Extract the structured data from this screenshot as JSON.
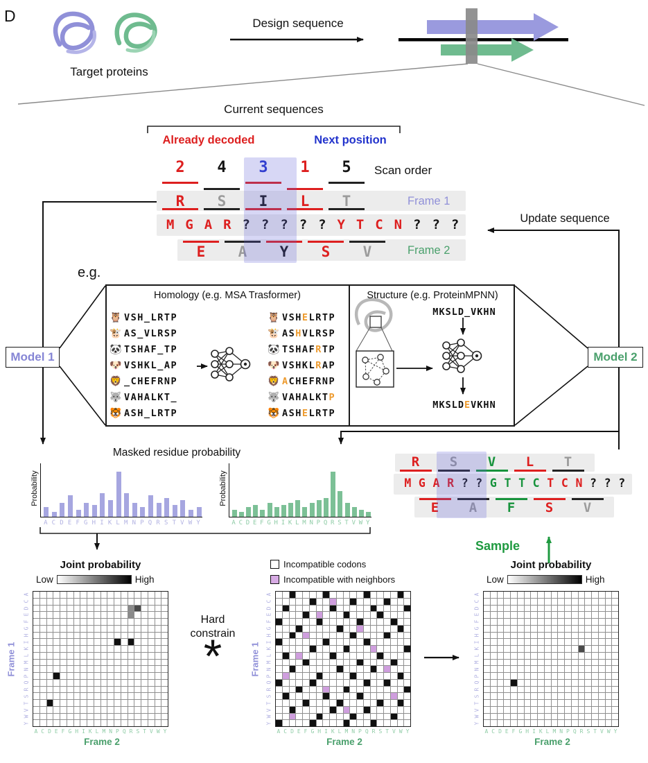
{
  "panel_label": "D",
  "colors": {
    "red": "#dd1f1f",
    "blue": "#2233cc",
    "frame1_purple": "#9090d8",
    "frame2_green": "#4aa06c",
    "sample_green": "#1f9a40",
    "orange": "#ed9a2d",
    "gray_letter": "#9b9b9b",
    "heat_purple": "#cf9ede"
  },
  "top": {
    "target_proteins": "Target proteins",
    "design_sequence": "Design sequence"
  },
  "current_panel": {
    "title": "Current sequences",
    "already_decoded": "Already decoded",
    "next_position": "Next position",
    "scan_order_label": "Scan order",
    "scan_numbers": "24315",
    "scan_colors": "rkbrk",
    "scan_line_colors": "rkrrk",
    "frame1_label": "Frame 1",
    "frame2_label": "Frame 2",
    "frame1_seq": "RSILT",
    "frame1_colors": "rakra",
    "frame1_line_colors": "rkrrk",
    "nt_seq": "MGAR?????YTCN???",
    "nt_colors": "rrrrkkkkkrrrrkkk",
    "frame2_seq": "EAYSV",
    "frame2_colors": "rakra",
    "frame2_line_colors": "rkrrk",
    "update_label": "Update sequence"
  },
  "models_box": {
    "eg": "e.g.",
    "model1": "Model 1",
    "model2": "Model 2",
    "homology_title": "Homology (e.g. MSA Trasformer)",
    "structure_title": "Structure (e.g. ProteinMPNN)",
    "msa_rows": [
      {
        "animal": "owl",
        "icon": "🦉",
        "input": "VSH_LRTP",
        "output": "VSHELRTP",
        "highlight": 3
      },
      {
        "animal": "cow",
        "icon": "🐮",
        "input": "AS_VLRSP",
        "output": "ASHVLRSP",
        "highlight": 2
      },
      {
        "animal": "panda",
        "icon": "🐼",
        "input": "TSHAF_TP",
        "output": "TSHAFRTP",
        "highlight": 5
      },
      {
        "animal": "dog",
        "icon": "🐶",
        "input": "VSHKL_AP",
        "output": "VSHKLRAP",
        "highlight": 5
      },
      {
        "animal": "lion",
        "icon": "🦁",
        "input": "_CHEFRNP",
        "output": "ACHEFRNP",
        "highlight": 0
      },
      {
        "animal": "wolf",
        "icon": "🐺",
        "input": "VAHALKT_",
        "output": "VAHALKTP",
        "highlight": 7
      },
      {
        "animal": "tiger",
        "icon": "🐯",
        "input": "ASH_LRTP",
        "output": "ASHELRTP",
        "highlight": 3
      }
    ],
    "structure_input": "MKSLD_VKHN",
    "structure_output": "MKSLDEVKHN",
    "structure_highlight": 5
  },
  "probability": {
    "title": "Masked residue probability",
    "ylabel": "Probability"
  },
  "updated_panel": {
    "frame1_seq": "RSVLT",
    "frame1_colors": "ragra",
    "frame1_line_colors": "rkgrk",
    "nt_seq": "MGAR??GTTCTCN???",
    "nt_colors": "rrrrkkggggrrrkkk",
    "frame2_seq": "EAFSV",
    "frame2_colors": "ragra",
    "frame2_line_colors": "rkgrk",
    "sample_label": "Sample"
  },
  "heatmaps": {
    "joint_title": "Joint probability",
    "low": "Low",
    "high": "High",
    "legend_black": "Incompatible codons",
    "legend_purple": "Incompatible with neighbors",
    "hard_constrain": "Hard constrain",
    "asterisk": "*",
    "frame1_label": "Frame 1",
    "frame2_label": "Frame 2",
    "letters": "ACDEFGHIKLMNPQRSTVWY",
    "left_cells": [
      [
        2,
        14,
        "g2"
      ],
      [
        2,
        15,
        "g1"
      ],
      [
        3,
        14,
        "g2"
      ],
      [
        7,
        12,
        "k"
      ],
      [
        7,
        14,
        "k"
      ],
      [
        12,
        3,
        "k"
      ],
      [
        16,
        2,
        "k"
      ]
    ],
    "right_cells": [
      [
        8,
        14,
        "g1"
      ],
      [
        13,
        4,
        "k"
      ]
    ],
    "mid_black": [
      [
        0,
        2
      ],
      [
        0,
        7
      ],
      [
        0,
        13
      ],
      [
        0,
        18
      ],
      [
        1,
        5
      ],
      [
        1,
        11
      ],
      [
        1,
        16
      ],
      [
        2,
        1
      ],
      [
        2,
        8
      ],
      [
        2,
        14
      ],
      [
        2,
        19
      ],
      [
        3,
        4
      ],
      [
        3,
        10
      ],
      [
        3,
        15
      ],
      [
        4,
        0
      ],
      [
        4,
        6
      ],
      [
        4,
        12
      ],
      [
        4,
        17
      ],
      [
        5,
        3
      ],
      [
        5,
        9
      ],
      [
        5,
        18
      ],
      [
        6,
        2
      ],
      [
        6,
        11
      ],
      [
        6,
        16
      ],
      [
        7,
        0
      ],
      [
        7,
        7
      ],
      [
        7,
        13
      ],
      [
        8,
        5
      ],
      [
        8,
        10
      ],
      [
        8,
        19
      ],
      [
        9,
        1
      ],
      [
        9,
        8
      ],
      [
        9,
        15
      ],
      [
        10,
        4
      ],
      [
        10,
        12
      ],
      [
        10,
        17
      ],
      [
        11,
        2
      ],
      [
        11,
        9
      ],
      [
        11,
        14
      ],
      [
        12,
        6
      ],
      [
        12,
        11
      ],
      [
        12,
        18
      ],
      [
        13,
        0
      ],
      [
        13,
        5
      ],
      [
        13,
        13
      ],
      [
        13,
        16
      ],
      [
        14,
        3
      ],
      [
        14,
        10
      ],
      [
        14,
        19
      ],
      [
        15,
        1
      ],
      [
        15,
        7
      ],
      [
        15,
        12
      ],
      [
        16,
        4
      ],
      [
        16,
        9
      ],
      [
        16,
        15
      ],
      [
        16,
        18
      ],
      [
        17,
        2
      ],
      [
        17,
        8
      ],
      [
        17,
        13
      ],
      [
        18,
        6
      ],
      [
        18,
        11
      ],
      [
        18,
        17
      ],
      [
        19,
        0
      ],
      [
        19,
        5
      ],
      [
        19,
        10
      ],
      [
        19,
        14
      ]
    ],
    "mid_purple": [
      [
        1,
        8
      ],
      [
        3,
        6
      ],
      [
        5,
        12
      ],
      [
        6,
        4
      ],
      [
        8,
        14
      ],
      [
        9,
        3
      ],
      [
        11,
        16
      ],
      [
        12,
        1
      ],
      [
        14,
        7
      ],
      [
        15,
        17
      ],
      [
        17,
        10
      ],
      [
        18,
        2
      ]
    ]
  },
  "chart_data": [
    {
      "type": "bar",
      "name": "model1_masked_residue_probability",
      "title": "Masked residue probability",
      "ylabel": "Probability",
      "categories": [
        "A",
        "C",
        "D",
        "E",
        "F",
        "G",
        "H",
        "I",
        "K",
        "L",
        "M",
        "N",
        "P",
        "Q",
        "R",
        "S",
        "T",
        "V",
        "W",
        "Y"
      ],
      "values": [
        0.2,
        0.1,
        0.3,
        0.45,
        0.15,
        0.3,
        0.25,
        0.5,
        0.35,
        0.95,
        0.5,
        0.3,
        0.2,
        0.45,
        0.3,
        0.4,
        0.25,
        0.35,
        0.15,
        0.2
      ],
      "color": "#a6a6e0",
      "ylim": [
        0,
        1
      ]
    },
    {
      "type": "bar",
      "name": "model2_masked_residue_probability",
      "title": "Masked residue probability",
      "ylabel": "Probability",
      "categories": [
        "A",
        "C",
        "D",
        "E",
        "F",
        "G",
        "H",
        "I",
        "K",
        "L",
        "M",
        "N",
        "P",
        "Q",
        "R",
        "S",
        "T",
        "V",
        "W",
        "Y"
      ],
      "values": [
        0.15,
        0.1,
        0.2,
        0.25,
        0.15,
        0.3,
        0.2,
        0.25,
        0.3,
        0.35,
        0.2,
        0.3,
        0.35,
        0.4,
        0.95,
        0.55,
        0.3,
        0.2,
        0.15,
        0.1
      ],
      "color": "#7cc096",
      "ylim": [
        0,
        1
      ]
    }
  ]
}
